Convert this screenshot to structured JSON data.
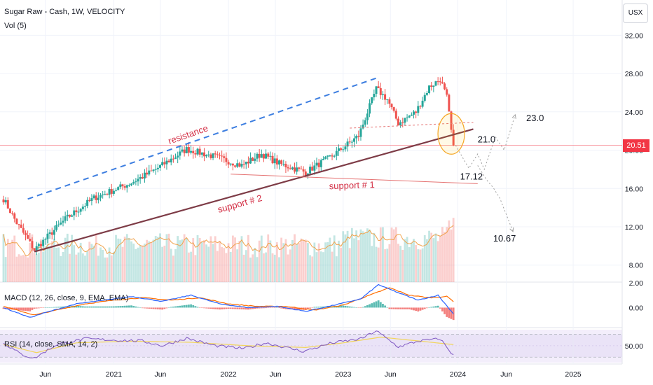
{
  "header": {
    "title": "Sugar Raw - Cash, 1W, VELOCITY",
    "volume_label": "Vol (5)",
    "currency": "USX"
  },
  "last_price": "20.51",
  "colors": {
    "up": "#26a69a",
    "down": "#ef5350",
    "resistance": "#3d7ee0",
    "support2": "#7d3b46",
    "support1": "#e57373",
    "ma": "#f0a24b",
    "macd": "#2962ff",
    "signal": "#ff6d00",
    "rsi": "#7e57c2",
    "rsi_ma": "#f2d55a",
    "annotation_red": "#d32f45"
  },
  "chart_data": [
    {
      "type": "candlestick",
      "title": "Sugar Raw - Cash, 1W, VELOCITY",
      "y_ticks": [
        "32.00",
        "28.00",
        "24.00",
        "20.00",
        "16.00",
        "12.00",
        "8.00"
      ],
      "ylim": [
        6.3,
        32.9
      ],
      "x_ticks": [
        "Jun",
        "2021",
        "Jun",
        "2022",
        "Jun",
        "2023",
        "Jun",
        "2024",
        "Jun",
        "2025"
      ],
      "xlim": [
        "2020-01-20",
        "2025-06-30"
      ],
      "grid": true,
      "last_price": 20.51,
      "key_points": [
        {
          "date": "2020-01-20",
          "value": 14.9
        },
        {
          "date": "2020-03-02",
          "value": 12.4
        },
        {
          "date": "2020-04-27",
          "value": 9.6
        },
        {
          "date": "2020-08-03",
          "value": 12.8
        },
        {
          "date": "2020-11-02",
          "value": 15.0
        },
        {
          "date": "2021-03-01",
          "value": 16.6
        },
        {
          "date": "2021-05-17",
          "value": 18.0
        },
        {
          "date": "2021-08-23",
          "value": 20.1
        },
        {
          "date": "2021-11-22",
          "value": 19.3
        },
        {
          "date": "2022-02-14",
          "value": 18.4
        },
        {
          "date": "2022-04-18",
          "value": 19.6
        },
        {
          "date": "2022-06-13",
          "value": 18.6
        },
        {
          "date": "2022-09-05",
          "value": 17.7
        },
        {
          "date": "2022-11-28",
          "value": 19.4
        },
        {
          "date": "2023-02-20",
          "value": 21.5
        },
        {
          "date": "2023-04-17",
          "value": 26.4
        },
        {
          "date": "2023-05-22",
          "value": 25.3
        },
        {
          "date": "2023-06-26",
          "value": 22.8
        },
        {
          "date": "2023-08-21",
          "value": 24.0
        },
        {
          "date": "2023-10-02",
          "value": 26.6
        },
        {
          "date": "2023-11-06",
          "value": 27.4
        },
        {
          "date": "2023-11-27",
          "value": 25.5
        },
        {
          "date": "2023-12-11",
          "value": 22.0
        },
        {
          "date": "2023-12-18",
          "value": 20.51
        }
      ],
      "annotations": [
        {
          "text": "resistance",
          "kind": "dashed-line",
          "from": {
            "date": "2020-04-06",
            "value": 14.9
          },
          "to": {
            "date": "2023-04-24",
            "value": 27.6
          }
        },
        {
          "text": "support # 2",
          "kind": "trendline",
          "from": {
            "date": "2020-04-27",
            "value": 9.4
          },
          "to": {
            "date": "2024-02-19",
            "value": 22.2
          }
        },
        {
          "text": "support # 1",
          "kind": "line",
          "from": {
            "date": "2022-01-10",
            "value": 17.5
          },
          "to": {
            "date": "2024-03-04",
            "value": 16.5
          }
        },
        {
          "text": "",
          "kind": "dotted-line",
          "from": {
            "date": "2023-01-23",
            "value": 22.3
          },
          "to": {
            "date": "2024-02-19",
            "value": 22.9
          }
        }
      ],
      "projections": [
        {
          "label": "23.0",
          "path": [
            {
              "date": "2023-12-25",
              "value": 20.5
            },
            {
              "date": "2024-02-05",
              "value": 18.1
            },
            {
              "date": "2024-03-04",
              "value": 19.6
            },
            {
              "date": "2024-03-25",
              "value": 18.0
            },
            {
              "date": "2024-04-29",
              "value": 21.4
            },
            {
              "date": "2024-05-27",
              "value": 20.0
            },
            {
              "date": "2024-07-01",
              "value": 23.7
            }
          ]
        },
        {
          "label": "21.0",
          "path": []
        },
        {
          "label": "17.12",
          "path": [
            {
              "date": "2024-03-04",
              "value": 18.4
            },
            {
              "date": "2024-04-01",
              "value": 16.9
            },
            {
              "date": "2024-04-22",
              "value": 16.1
            },
            {
              "date": "2024-05-13",
              "value": 15.0
            },
            {
              "date": "2024-06-24",
              "value": 11.5
            }
          ]
        },
        {
          "label": "10.67",
          "path": []
        }
      ]
    },
    {
      "type": "bar",
      "title": "Vol (5)",
      "note": "volume bars with moving average; relative heights 0-1"
    },
    {
      "type": "line",
      "title": "MACD (12, 26, close, 9, EMA, EMA)",
      "y_ticks": [
        "2.00",
        "0.00"
      ],
      "ylim": [
        -1.5,
        2.0
      ],
      "series": [
        {
          "name": "",
          "points": [
            {
              "date": "2020-01-20",
              "value": 0.0
            },
            {
              "date": "2020-04-13",
              "value": -0.8
            },
            {
              "date": "2020-06-01",
              "value": -0.4
            },
            {
              "date": "2020-09-07",
              "value": 0.3
            },
            {
              "date": "2020-12-07",
              "value": 0.6
            },
            {
              "date": "2021-03-01",
              "value": 0.9
            },
            {
              "date": "2021-06-07",
              "value": 0.5
            },
            {
              "date": "2021-09-06",
              "value": 1.0
            },
            {
              "date": "2021-12-06",
              "value": 0.3
            },
            {
              "date": "2022-03-07",
              "value": 0.0
            },
            {
              "date": "2022-06-06",
              "value": 0.1
            },
            {
              "date": "2022-09-05",
              "value": -0.3
            },
            {
              "date": "2022-12-05",
              "value": 0.2
            },
            {
              "date": "2023-02-27",
              "value": 0.7
            },
            {
              "date": "2023-04-24",
              "value": 1.85
            },
            {
              "date": "2023-06-26",
              "value": 1.2
            },
            {
              "date": "2023-08-28",
              "value": 0.6
            },
            {
              "date": "2023-10-30",
              "value": 1.0
            },
            {
              "date": "2023-12-18",
              "value": -0.5
            }
          ]
        },
        {
          "name": "",
          "points": [
            {
              "date": "2020-01-20",
              "value": 0.1
            },
            {
              "date": "2020-04-27",
              "value": -0.6
            },
            {
              "date": "2020-07-06",
              "value": -0.2
            },
            {
              "date": "2020-10-05",
              "value": 0.3
            },
            {
              "date": "2021-01-04",
              "value": 0.6
            },
            {
              "date": "2021-04-05",
              "value": 0.8
            },
            {
              "date": "2021-07-05",
              "value": 0.6
            },
            {
              "date": "2021-10-04",
              "value": 0.8
            },
            {
              "date": "2022-01-03",
              "value": 0.3
            },
            {
              "date": "2022-04-04",
              "value": 0.1
            },
            {
              "date": "2022-07-04",
              "value": 0.1
            },
            {
              "date": "2022-10-03",
              "value": -0.2
            },
            {
              "date": "2023-01-02",
              "value": 0.2
            },
            {
              "date": "2023-03-27",
              "value": 1.0
            },
            {
              "date": "2023-05-29",
              "value": 1.6
            },
            {
              "date": "2023-07-31",
              "value": 1.0
            },
            {
              "date": "2023-10-02",
              "value": 0.8
            },
            {
              "date": "2023-11-27",
              "value": 0.9
            },
            {
              "date": "2023-12-18",
              "value": 0.5
            }
          ]
        }
      ]
    },
    {
      "type": "line",
      "title": "RSI (14, close, SMA, 14, 2)",
      "y_ticks": [
        "50.00"
      ],
      "ylim": [
        23,
        78
      ],
      "band": [
        30,
        70
      ],
      "series": [
        {
          "name": "",
          "points": [
            {
              "date": "2020-01-20",
              "value": 55
            },
            {
              "date": "2020-03-16",
              "value": 35
            },
            {
              "date": "2020-04-27",
              "value": 28
            },
            {
              "date": "2020-07-06",
              "value": 52
            },
            {
              "date": "2020-10-05",
              "value": 62
            },
            {
              "date": "2021-01-04",
              "value": 60
            },
            {
              "date": "2021-04-05",
              "value": 58
            },
            {
              "date": "2021-06-07",
              "value": 50
            },
            {
              "date": "2021-08-23",
              "value": 63
            },
            {
              "date": "2021-11-22",
              "value": 50
            },
            {
              "date": "2022-02-21",
              "value": 45
            },
            {
              "date": "2022-05-02",
              "value": 55
            },
            {
              "date": "2022-08-29",
              "value": 40
            },
            {
              "date": "2022-11-28",
              "value": 55
            },
            {
              "date": "2023-02-27",
              "value": 62
            },
            {
              "date": "2023-04-17",
              "value": 76
            },
            {
              "date": "2023-06-26",
              "value": 48
            },
            {
              "date": "2023-08-28",
              "value": 58
            },
            {
              "date": "2023-11-06",
              "value": 62
            },
            {
              "date": "2023-12-18",
              "value": 33
            }
          ]
        },
        {
          "name": "",
          "points": [
            {
              "date": "2020-01-20",
              "value": 52
            },
            {
              "date": "2020-05-04",
              "value": 38
            },
            {
              "date": "2020-09-07",
              "value": 55
            },
            {
              "date": "2021-03-01",
              "value": 58
            },
            {
              "date": "2021-09-06",
              "value": 56
            },
            {
              "date": "2022-03-07",
              "value": 50
            },
            {
              "date": "2022-09-05",
              "value": 47
            },
            {
              "date": "2023-01-02",
              "value": 55
            },
            {
              "date": "2023-05-01",
              "value": 65
            },
            {
              "date": "2023-09-04",
              "value": 58
            },
            {
              "date": "2023-12-18",
              "value": 52
            }
          ]
        }
      ]
    }
  ]
}
